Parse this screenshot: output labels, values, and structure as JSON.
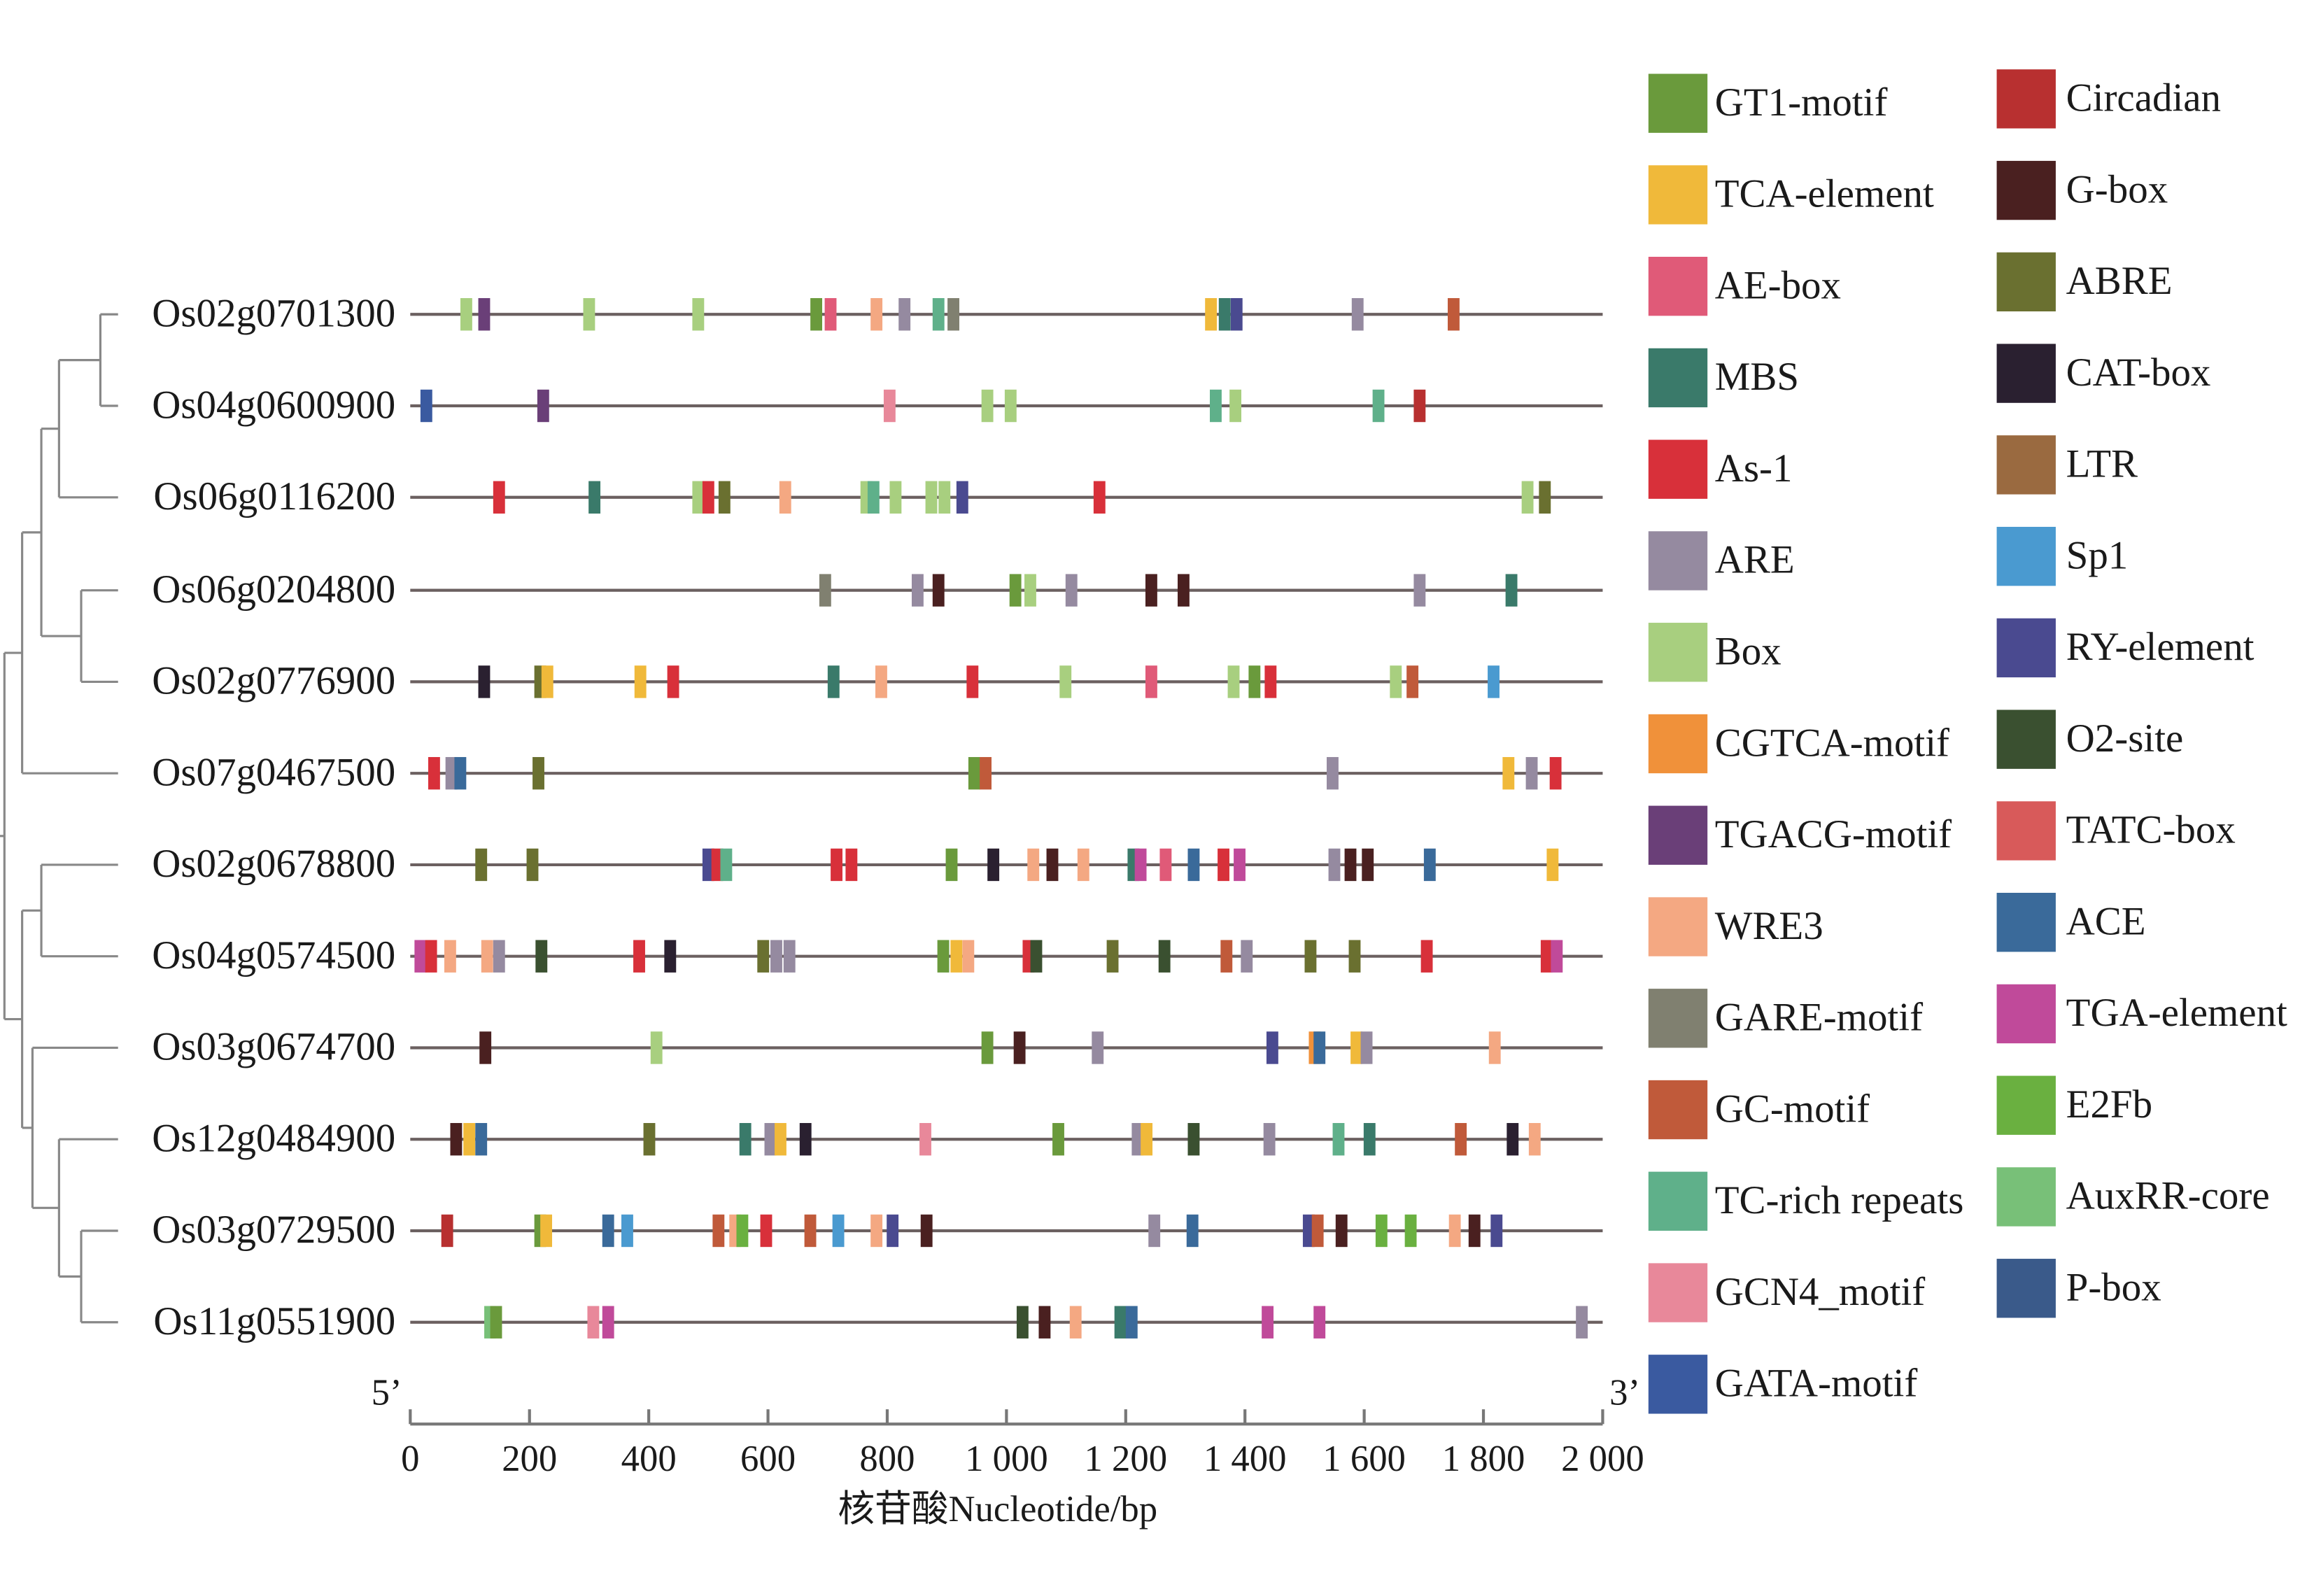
{
  "chart_data": {
    "type": "promoter-elements",
    "x_label": "核苷酸Nucleotide/bp",
    "start_label": "5’",
    "end_label": "3’",
    "xlim": [
      0,
      2000
    ],
    "xticks": [
      0,
      200,
      400,
      600,
      800,
      {
        "value": 1000,
        "label": "1 000"
      },
      {
        "value": 1200,
        "label": "1 200"
      },
      {
        "value": 1400,
        "label": "1 400"
      },
      {
        "value": 1600,
        "label": "1 600"
      },
      {
        "value": 1800,
        "label": "1 800"
      },
      {
        "value": 2000,
        "label": "2 000"
      }
    ],
    "motifs": [
      {
        "name": "GT1-motif",
        "color": "#6a9a3c"
      },
      {
        "name": "TCA-element",
        "color": "#f0b93a"
      },
      {
        "name": "AE-box",
        "color": "#e05a78"
      },
      {
        "name": "MBS",
        "color": "#3a7a6a"
      },
      {
        "name": "As-1",
        "color": "#d8303a"
      },
      {
        "name": "ARE",
        "color": "#958aa0"
      },
      {
        "name": "Box",
        "color": "#a8cf7f"
      },
      {
        "name": "CGTCA-motif",
        "color": "#f0913a"
      },
      {
        "name": "TGACG-motif",
        "color": "#6a3f78"
      },
      {
        "name": "WRE3",
        "color": "#f4a882"
      },
      {
        "name": "GARE-motif",
        "color": "#808070"
      },
      {
        "name": "GC-motif",
        "color": "#c05a3a"
      },
      {
        "name": "TC-rich repeats",
        "color": "#5fb08a"
      },
      {
        "name": "GCN4_motif",
        "color": "#e8889a"
      },
      {
        "name": "GATA-motif",
        "color": "#3a5aa0"
      },
      {
        "name": "Circadian",
        "color": "#b83030"
      },
      {
        "name": "G-box",
        "color": "#4a2020"
      },
      {
        "name": "ABRE",
        "color": "#6a7030"
      },
      {
        "name": "CAT-box",
        "color": "#2a2030"
      },
      {
        "name": "LTR",
        "color": "#9a6a40"
      },
      {
        "name": "Sp1",
        "color": "#4a9ad0"
      },
      {
        "name": "RY-element",
        "color": "#4a4a90"
      },
      {
        "name": "O2-site",
        "color": "#3a5030"
      },
      {
        "name": "TATC-box",
        "color": "#d85a5a"
      },
      {
        "name": "ACE",
        "color": "#3a6a9a"
      },
      {
        "name": "TGA-element",
        "color": "#c04a9a"
      },
      {
        "name": "E2Fb",
        "color": "#6ab040"
      },
      {
        "name": "AuxRR-core",
        "color": "#78c078"
      },
      {
        "name": "P-box",
        "color": "#3a5a8a"
      }
    ],
    "genes": [
      {
        "name": "Os02g0701300",
        "elements": [
          {
            "motif": "Box",
            "position": 94
          },
          {
            "motif": "TGACG-motif",
            "position": 124
          },
          {
            "motif": "Box",
            "position": 300
          },
          {
            "motif": "Box",
            "position": 483
          },
          {
            "motif": "GT1-motif",
            "position": 681
          },
          {
            "motif": "AE-box",
            "position": 705
          },
          {
            "motif": "WRE3",
            "position": 782
          },
          {
            "motif": "ARE",
            "position": 829
          },
          {
            "motif": "TC-rich repeats",
            "position": 886
          },
          {
            "motif": "GARE-motif",
            "position": 911
          },
          {
            "motif": "TCA-element",
            "position": 1343
          },
          {
            "motif": "MBS",
            "position": 1366
          },
          {
            "motif": "RY-element",
            "position": 1386
          },
          {
            "motif": "ARE",
            "position": 1589
          },
          {
            "motif": "GC-motif",
            "position": 1750
          }
        ]
      },
      {
        "name": "Os04g0600900",
        "elements": [
          {
            "motif": "GATA-motif",
            "position": 27
          },
          {
            "motif": "TGACG-motif",
            "position": 223
          },
          {
            "motif": "GCN4_motif",
            "position": 804
          },
          {
            "motif": "Box",
            "position": 968
          },
          {
            "motif": "Box",
            "position": 1007
          },
          {
            "motif": "TC-rich repeats",
            "position": 1351
          },
          {
            "motif": "Box",
            "position": 1384
          },
          {
            "motif": "TC-rich repeats",
            "position": 1624
          },
          {
            "motif": "Circadian",
            "position": 1693
          }
        ]
      },
      {
        "name": "Os06g0116200",
        "elements": [
          {
            "motif": "As-1",
            "position": 149
          },
          {
            "motif": "MBS",
            "position": 309
          },
          {
            "motif": "Box",
            "position": 483
          },
          {
            "motif": "As-1",
            "position": 500
          },
          {
            "motif": "ABRE",
            "position": 527
          },
          {
            "motif": "WRE3",
            "position": 629
          },
          {
            "motif": "Box",
            "position": 765
          },
          {
            "motif": "TC-rich repeats",
            "position": 777
          },
          {
            "motif": "Box",
            "position": 814
          },
          {
            "motif": "Box",
            "position": 874
          },
          {
            "motif": "Box",
            "position": 896
          },
          {
            "motif": "RY-element",
            "position": 926
          },
          {
            "motif": "As-1",
            "position": 1156
          },
          {
            "motif": "Box",
            "position": 1874
          },
          {
            "motif": "ABRE",
            "position": 1903
          }
        ]
      },
      {
        "name": "Os06g0204800",
        "elements": [
          {
            "motif": "GARE-motif",
            "position": 696
          },
          {
            "motif": "ARE",
            "position": 851
          },
          {
            "motif": "G-box",
            "position": 886
          },
          {
            "motif": "GT1-motif",
            "position": 1015
          },
          {
            "motif": "Box",
            "position": 1040
          },
          {
            "motif": "ARE",
            "position": 1109
          },
          {
            "motif": "G-box",
            "position": 1243
          },
          {
            "motif": "G-box",
            "position": 1297
          },
          {
            "motif": "ARE",
            "position": 1693
          },
          {
            "motif": "MBS",
            "position": 1847
          }
        ]
      },
      {
        "name": "Os02g0776900",
        "elements": [
          {
            "motif": "CAT-box",
            "position": 124
          },
          {
            "motif": "ABRE",
            "position": 218
          },
          {
            "motif": "TCA-element",
            "position": 230
          },
          {
            "motif": "TCA-element",
            "position": 386
          },
          {
            "motif": "As-1",
            "position": 441
          },
          {
            "motif": "MBS",
            "position": 710
          },
          {
            "motif": "WRE3",
            "position": 790
          },
          {
            "motif": "As-1",
            "position": 943
          },
          {
            "motif": "Box",
            "position": 1099
          },
          {
            "motif": "AE-box",
            "position": 1243
          },
          {
            "motif": "Box",
            "position": 1381
          },
          {
            "motif": "GT1-motif",
            "position": 1416
          },
          {
            "motif": "As-1",
            "position": 1443
          },
          {
            "motif": "Box",
            "position": 1653
          },
          {
            "motif": "GC-motif",
            "position": 1681
          },
          {
            "motif": "Sp1",
            "position": 1817
          }
        ]
      },
      {
        "name": "Os07g0467500",
        "elements": [
          {
            "motif": "As-1",
            "position": 40
          },
          {
            "motif": "ARE",
            "position": 69
          },
          {
            "motif": "ACE",
            "position": 84
          },
          {
            "motif": "ABRE",
            "position": 215
          },
          {
            "motif": "GT1-motif",
            "position": 946
          },
          {
            "motif": "GC-motif",
            "position": 965
          },
          {
            "motif": "ARE",
            "position": 1547
          },
          {
            "motif": "TCA-element",
            "position": 1842
          },
          {
            "motif": "ARE",
            "position": 1881
          },
          {
            "motif": "As-1",
            "position": 1921
          }
        ]
      },
      {
        "name": "Os02g0678800",
        "elements": [
          {
            "motif": "ABRE",
            "position": 119
          },
          {
            "motif": "ABRE",
            "position": 205
          },
          {
            "motif": "RY-element",
            "position": 500
          },
          {
            "motif": "As-1",
            "position": 515
          },
          {
            "motif": "TC-rich repeats",
            "position": 530
          },
          {
            "motif": "As-1",
            "position": 715
          },
          {
            "motif": "As-1",
            "position": 740
          },
          {
            "motif": "GT1-motif",
            "position": 908
          },
          {
            "motif": "CAT-box",
            "position": 978
          },
          {
            "motif": "WRE3",
            "position": 1045
          },
          {
            "motif": "G-box",
            "position": 1077
          },
          {
            "motif": "WRE3",
            "position": 1129
          },
          {
            "motif": "MBS",
            "position": 1213
          },
          {
            "motif": "TGA-element",
            "position": 1225
          },
          {
            "motif": "AE-box",
            "position": 1267
          },
          {
            "motif": "ACE",
            "position": 1314
          },
          {
            "motif": "As-1",
            "position": 1364
          },
          {
            "motif": "TGA-element",
            "position": 1391
          },
          {
            "motif": "ARE",
            "position": 1550
          },
          {
            "motif": "G-box",
            "position": 1577
          },
          {
            "motif": "G-box",
            "position": 1606
          },
          {
            "motif": "ACE",
            "position": 1710
          },
          {
            "motif": "TCA-element",
            "position": 1916
          }
        ]
      },
      {
        "name": "Os04g0574500",
        "elements": [
          {
            "motif": "TGA-element",
            "position": 17
          },
          {
            "motif": "As-1",
            "position": 35
          },
          {
            "motif": "WRE3",
            "position": 67
          },
          {
            "motif": "WRE3",
            "position": 129
          },
          {
            "motif": "ARE",
            "position": 149
          },
          {
            "motif": "O2-site",
            "position": 220
          },
          {
            "motif": "As-1",
            "position": 384
          },
          {
            "motif": "CAT-box",
            "position": 436
          },
          {
            "motif": "ABRE",
            "position": 592
          },
          {
            "motif": "ARE",
            "position": 614
          },
          {
            "motif": "ARE",
            "position": 636
          },
          {
            "motif": "GT1-motif",
            "position": 894
          },
          {
            "motif": "TCA-element",
            "position": 916
          },
          {
            "motif": "WRE3",
            "position": 936
          },
          {
            "motif": "As-1",
            "position": 1037
          },
          {
            "motif": "O2-site",
            "position": 1050
          },
          {
            "motif": "ABRE",
            "position": 1178
          },
          {
            "motif": "O2-site",
            "position": 1265
          },
          {
            "motif": "GC-motif",
            "position": 1369
          },
          {
            "motif": "ARE",
            "position": 1403
          },
          {
            "motif": "ABRE",
            "position": 1510
          },
          {
            "motif": "ABRE",
            "position": 1584
          },
          {
            "motif": "As-1",
            "position": 1705
          },
          {
            "motif": "As-1",
            "position": 1906
          },
          {
            "motif": "TGA-element",
            "position": 1923
          }
        ]
      },
      {
        "name": "Os03g0674700",
        "elements": [
          {
            "motif": "G-box",
            "position": 126
          },
          {
            "motif": "Box",
            "position": 413
          },
          {
            "motif": "GT1-motif",
            "position": 968
          },
          {
            "motif": "G-box",
            "position": 1022
          },
          {
            "motif": "ARE",
            "position": 1153
          },
          {
            "motif": "RY-element",
            "position": 1446
          },
          {
            "motif": "CGTCA-motif",
            "position": 1517
          },
          {
            "motif": "ACE",
            "position": 1525
          },
          {
            "motif": "TCA-element",
            "position": 1587
          },
          {
            "motif": "ARE",
            "position": 1604
          },
          {
            "motif": "WRE3",
            "position": 1819
          }
        ]
      },
      {
        "name": "Os12g0484900",
        "elements": [
          {
            "motif": "G-box",
            "position": 77
          },
          {
            "motif": "TCA-element",
            "position": 99
          },
          {
            "motif": "ACE",
            "position": 119
          },
          {
            "motif": "ABRE",
            "position": 401
          },
          {
            "motif": "MBS",
            "position": 562
          },
          {
            "motif": "ARE",
            "position": 604
          },
          {
            "motif": "TCA-element",
            "position": 621
          },
          {
            "motif": "CAT-box",
            "position": 663
          },
          {
            "motif": "GCN4_motif",
            "position": 864
          },
          {
            "motif": "GT1-motif",
            "position": 1087
          },
          {
            "motif": "ARE",
            "position": 1220
          },
          {
            "motif": "TCA-element",
            "position": 1235
          },
          {
            "motif": "O2-site",
            "position": 1314
          },
          {
            "motif": "ARE",
            "position": 1441
          },
          {
            "motif": "TC-rich repeats",
            "position": 1557
          },
          {
            "motif": "MBS",
            "position": 1609
          },
          {
            "motif": "GC-motif",
            "position": 1762
          },
          {
            "motif": "CAT-box",
            "position": 1849
          },
          {
            "motif": "WRE3",
            "position": 1886
          }
        ]
      },
      {
        "name": "Os03g0729500",
        "elements": [
          {
            "motif": "Circadian",
            "position": 62
          },
          {
            "motif": "GT1-motif",
            "position": 218
          },
          {
            "motif": "TCA-element",
            "position": 228
          },
          {
            "motif": "ACE",
            "position": 332
          },
          {
            "motif": "Sp1",
            "position": 364
          },
          {
            "motif": "GC-motif",
            "position": 517
          },
          {
            "motif": "WRE3",
            "position": 545
          },
          {
            "motif": "E2Fb",
            "position": 557
          },
          {
            "motif": "As-1",
            "position": 597
          },
          {
            "motif": "GC-motif",
            "position": 671
          },
          {
            "motif": "Sp1",
            "position": 718
          },
          {
            "motif": "WRE3",
            "position": 782
          },
          {
            "motif": "RY-element",
            "position": 809
          },
          {
            "motif": "G-box",
            "position": 866
          },
          {
            "motif": "ARE",
            "position": 1248
          },
          {
            "motif": "ACE",
            "position": 1312
          },
          {
            "motif": "RY-element",
            "position": 1507
          },
          {
            "motif": "GC-motif",
            "position": 1522
          },
          {
            "motif": "G-box",
            "position": 1562
          },
          {
            "motif": "E2Fb",
            "position": 1629
          },
          {
            "motif": "E2Fb",
            "position": 1678
          },
          {
            "motif": "WRE3",
            "position": 1752
          },
          {
            "motif": "G-box",
            "position": 1785
          },
          {
            "motif": "RY-element",
            "position": 1822
          }
        ]
      },
      {
        "name": "Os11g0551900",
        "elements": [
          {
            "motif": "AuxRR-core",
            "position": 134
          },
          {
            "motif": "GT1-motif",
            "position": 144
          },
          {
            "motif": "GCN4_motif",
            "position": 307
          },
          {
            "motif": "TGA-element",
            "position": 332
          },
          {
            "motif": "O2-site",
            "position": 1027
          },
          {
            "motif": "G-box",
            "position": 1064
          },
          {
            "motif": "WRE3",
            "position": 1116
          },
          {
            "motif": "MBS",
            "position": 1191
          },
          {
            "motif": "ACE",
            "position": 1210
          },
          {
            "motif": "TGA-element",
            "position": 1438
          },
          {
            "motif": "TGA-element",
            "position": 1525
          },
          {
            "motif": "ARE",
            "position": 1965
          }
        ]
      }
    ]
  }
}
